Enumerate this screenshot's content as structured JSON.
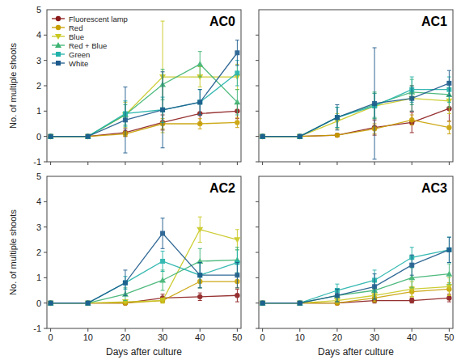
{
  "chart_data": [
    {
      "type": "line",
      "title": "AC0",
      "x": [
        0,
        10,
        20,
        30,
        40,
        50
      ],
      "xlim": [
        -1,
        51
      ],
      "xticks": [
        0,
        10,
        20,
        30,
        40,
        50
      ],
      "ylim": [
        -1,
        5
      ],
      "yticks": [
        -1,
        0,
        1,
        2,
        3,
        4
      ],
      "ylabel": "No. of multiple shoots",
      "tick_labels": "y",
      "legend": "upper left",
      "annotations": [
        {
          "text": "5",
          "y": 5
        }
      ],
      "series": [
        {
          "name": "Fluorescent lamp",
          "color": "#8B1A1A",
          "marker": "circle",
          "values": [
            0,
            0.0,
            0.15,
            0.55,
            0.9,
            1.0
          ],
          "errors": [
            0,
            0,
            0.15,
            0.3,
            0.4,
            0.3
          ]
        },
        {
          "name": "Red",
          "color": "#C8A000",
          "marker": "circle",
          "values": [
            0,
            0.0,
            0.1,
            0.5,
            0.5,
            0.55
          ],
          "errors": [
            0,
            0,
            0.1,
            0.2,
            0.2,
            0.2
          ]
        },
        {
          "name": "Blue",
          "color": "#C8C820",
          "marker": "triangle-down",
          "values": [
            0,
            0.0,
            0.85,
            2.35,
            2.35,
            2.35
          ],
          "errors": [
            0,
            0,
            0.5,
            2.2,
            0.4,
            0.5
          ]
        },
        {
          "name": "Red + Blue",
          "color": "#3CB371",
          "marker": "triangle-up",
          "values": [
            0,
            0.0,
            0.85,
            2.05,
            2.85,
            1.35
          ],
          "errors": [
            0,
            0,
            0.4,
            0.6,
            0.5,
            0.5
          ]
        },
        {
          "name": "Green",
          "color": "#20B2AA",
          "marker": "square",
          "values": [
            0,
            0.0,
            0.9,
            1.05,
            1.35,
            2.5
          ],
          "errors": [
            0,
            0,
            0.5,
            0.5,
            0.5,
            0.5
          ]
        },
        {
          "name": "White",
          "color": "#1C5A8C",
          "marker": "square",
          "values": [
            0,
            0.0,
            0.65,
            1.05,
            1.35,
            3.3
          ],
          "errors": [
            0,
            0,
            1.3,
            1.5,
            0.5,
            0.5
          ]
        }
      ]
    },
    {
      "type": "line",
      "title": "AC1",
      "x": [
        0,
        10,
        20,
        30,
        40,
        50
      ],
      "xlim": [
        -1,
        51
      ],
      "xticks": [
        0,
        10,
        20,
        30,
        40,
        50
      ],
      "ylim": [
        -1,
        5
      ],
      "yticks": [
        -1,
        0,
        1,
        2,
        3,
        4
      ],
      "tick_labels": false,
      "series": [
        {
          "name": "Fluorescent lamp",
          "color": "#8B1A1A",
          "marker": "circle",
          "values": [
            0,
            0.0,
            0.05,
            0.35,
            0.55,
            1.1
          ],
          "errors": [
            0,
            0,
            0.05,
            0.3,
            0.4,
            0.5
          ]
        },
        {
          "name": "Red",
          "color": "#C8A000",
          "marker": "circle",
          "values": [
            0,
            0.0,
            0.05,
            0.3,
            0.65,
            0.35
          ],
          "errors": [
            0,
            0,
            0.05,
            0.2,
            0.2,
            0.25
          ]
        },
        {
          "name": "Blue",
          "color": "#C8C820",
          "marker": "triangle-down",
          "values": [
            0,
            0.0,
            0.6,
            1.2,
            1.5,
            1.4
          ],
          "errors": [
            0,
            0,
            0.3,
            0.5,
            0.5,
            0.5
          ]
        },
        {
          "name": "Red + Blue",
          "color": "#3CB371",
          "marker": "triangle-up",
          "values": [
            0,
            0.0,
            0.75,
            1.25,
            1.75,
            1.65
          ],
          "errors": [
            0,
            0,
            0.4,
            0.5,
            0.5,
            0.5
          ]
        },
        {
          "name": "Green",
          "color": "#20B2AA",
          "marker": "square",
          "values": [
            0,
            0.0,
            0.75,
            1.2,
            1.85,
            1.85
          ],
          "errors": [
            0,
            0,
            0.4,
            0.5,
            0.5,
            0.5
          ]
        },
        {
          "name": "White",
          "color": "#1C5A8C",
          "marker": "square",
          "values": [
            0,
            0.0,
            0.75,
            1.3,
            1.5,
            2.1
          ],
          "errors": [
            0,
            0,
            0.5,
            2.2,
            0.5,
            0.5
          ]
        }
      ]
    },
    {
      "type": "line",
      "title": "AC2",
      "x": [
        0,
        10,
        20,
        30,
        40,
        50
      ],
      "xlim": [
        -1,
        51
      ],
      "xticks": [
        0,
        10,
        20,
        30,
        40,
        50
      ],
      "ylim": [
        -1,
        5
      ],
      "yticks": [
        -1,
        0,
        1,
        2,
        3,
        4
      ],
      "xlabel": "Days after culture",
      "ylabel": "No. of multiple shoots",
      "annotations": [
        {
          "text": "5",
          "y": 5
        }
      ],
      "series": [
        {
          "name": "Fluorescent lamp",
          "color": "#8B1A1A",
          "marker": "circle",
          "values": [
            0,
            0.0,
            0.0,
            0.2,
            0.25,
            0.3
          ],
          "errors": [
            0,
            0,
            0.0,
            0.15,
            0.15,
            0.25
          ]
        },
        {
          "name": "Red",
          "color": "#C8A000",
          "marker": "circle",
          "values": [
            0,
            0.0,
            0.0,
            0.1,
            0.85,
            0.85
          ],
          "errors": [
            0,
            0,
            0.0,
            0.1,
            0.25,
            0.25
          ]
        },
        {
          "name": "Blue",
          "color": "#C8C820",
          "marker": "triangle-down",
          "values": [
            0,
            0.0,
            0.05,
            0.1,
            2.9,
            2.5
          ],
          "errors": [
            0,
            0,
            0.05,
            0.1,
            0.5,
            0.4
          ]
        },
        {
          "name": "Red + Blue",
          "color": "#3CB371",
          "marker": "triangle-up",
          "values": [
            0,
            0.0,
            0.35,
            0.9,
            1.65,
            1.7
          ],
          "errors": [
            0,
            0,
            0.25,
            0.4,
            0.5,
            0.5
          ]
        },
        {
          "name": "Green",
          "color": "#20B2AA",
          "marker": "square",
          "values": [
            0,
            0.0,
            0.8,
            1.65,
            1.1,
            1.6
          ],
          "errors": [
            0,
            0,
            0.25,
            0.4,
            0.5,
            0.5
          ]
        },
        {
          "name": "White",
          "color": "#1C5A8C",
          "marker": "square",
          "values": [
            0,
            0.0,
            0.8,
            2.75,
            1.1,
            1.1
          ],
          "errors": [
            0,
            0,
            0.5,
            0.6,
            0.5,
            0.5
          ]
        }
      ]
    },
    {
      "type": "line",
      "title": "AC3",
      "x": [
        0,
        10,
        20,
        30,
        40,
        50
      ],
      "xlim": [
        -1,
        51
      ],
      "xticks": [
        0,
        10,
        20,
        30,
        40,
        50
      ],
      "ylim": [
        -1,
        5
      ],
      "yticks": [
        -1,
        0,
        1,
        2,
        3,
        4
      ],
      "xlabel": "Days after culture",
      "tick_labels": "x",
      "series": [
        {
          "name": "Fluorescent lamp",
          "color": "#8B1A1A",
          "marker": "circle",
          "values": [
            0,
            0.0,
            0.0,
            0.1,
            0.1,
            0.2
          ],
          "errors": [
            0,
            0,
            0.0,
            0.1,
            0.1,
            0.15
          ]
        },
        {
          "name": "Red",
          "color": "#C8A000",
          "marker": "circle",
          "values": [
            0,
            0.0,
            0.0,
            0.2,
            0.45,
            0.55
          ],
          "errors": [
            0,
            0,
            0.0,
            0.15,
            0.2,
            0.25
          ]
        },
        {
          "name": "Blue",
          "color": "#C8C820",
          "marker": "triangle-down",
          "values": [
            0,
            0.0,
            0.1,
            0.3,
            0.55,
            0.65
          ],
          "errors": [
            0,
            0,
            0.1,
            0.25,
            0.3,
            0.35
          ]
        },
        {
          "name": "Red + Blue",
          "color": "#3CB371",
          "marker": "triangle-up",
          "values": [
            0,
            0.0,
            0.3,
            0.5,
            1.0,
            1.15
          ],
          "errors": [
            0,
            0,
            0.25,
            0.35,
            0.4,
            0.4
          ]
        },
        {
          "name": "Green",
          "color": "#20B2AA",
          "marker": "square",
          "values": [
            0,
            0.0,
            0.5,
            0.9,
            1.8,
            2.1
          ],
          "errors": [
            0,
            0,
            0.25,
            0.4,
            0.4,
            0.5
          ]
        },
        {
          "name": "White",
          "color": "#1C5A8C",
          "marker": "square",
          "values": [
            0,
            0.0,
            0.3,
            0.65,
            1.5,
            2.1
          ],
          "errors": [
            0,
            0,
            0.25,
            0.5,
            0.4,
            0.5
          ]
        }
      ]
    }
  ]
}
